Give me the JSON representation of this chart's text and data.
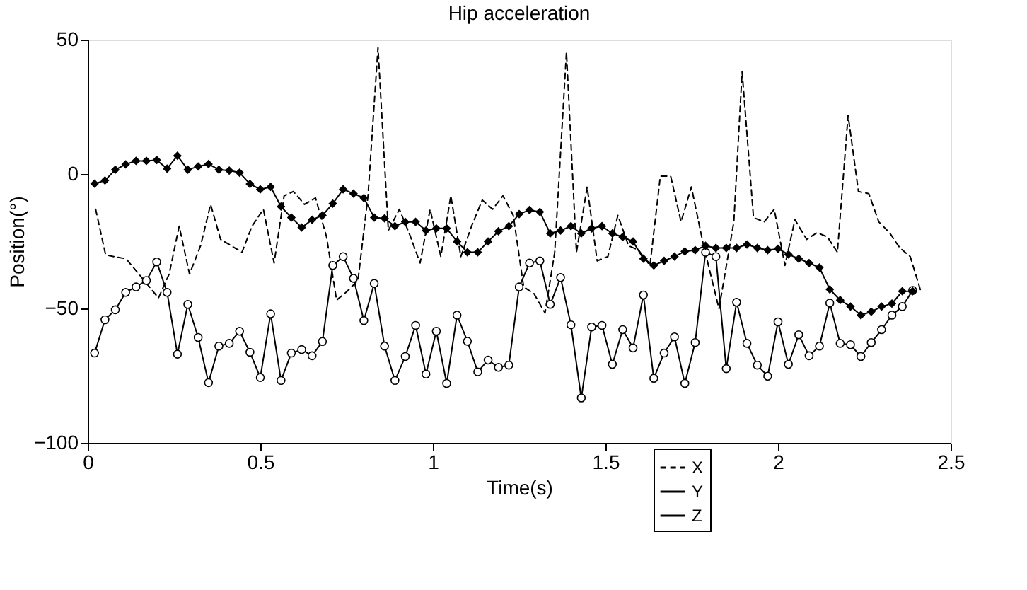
{
  "chart_data": {
    "type": "line",
    "title": "Hip acceleration",
    "xlabel": "Time(s)",
    "ylabel": "Position(°)",
    "xlim": [
      0,
      2.5
    ],
    "xticks": [
      0,
      0.5,
      1,
      1.5,
      2,
      2.5
    ],
    "ylim": [
      -100,
      50
    ],
    "yticks": [
      -100,
      -50,
      0,
      50
    ],
    "grid": false,
    "legend": "bottom",
    "series": [
      {
        "name": "X",
        "color": "#000000",
        "line_style": "dashed",
        "marker": "none",
        "x": [
          0.023,
          0.052,
          0.084,
          0.111,
          0.143,
          0.205,
          0.236,
          0.265,
          0.295,
          0.327,
          0.356,
          0.385,
          0.447,
          0.476,
          0.509,
          0.54,
          0.569,
          0.596,
          0.628,
          0.66,
          0.692,
          0.721,
          0.751,
          0.783,
          0.812,
          0.841,
          0.871,
          0.903,
          0.933,
          0.963,
          0.992,
          1.023,
          1.052,
          1.081,
          1.112,
          1.143,
          1.173,
          1.203,
          1.233,
          1.263,
          1.293,
          1.325,
          1.353,
          1.387,
          1.416,
          1.447,
          1.476,
          1.507,
          1.536,
          1.567,
          1.596,
          1.629,
          1.659,
          1.689,
          1.719,
          1.749,
          1.783,
          1.829,
          1.872,
          1.896,
          1.929,
          1.96,
          1.989,
          2.02,
          2.049,
          2.083,
          2.113,
          2.143,
          2.172,
          2.203,
          2.233,
          2.263,
          2.292,
          2.323,
          2.353,
          2.383,
          2.413
        ],
        "values": [
          -13.1,
          -30.1,
          -30.9,
          -31.5,
          -36.4,
          -46.1,
          -37.2,
          -19.4,
          -37.2,
          -26.7,
          -11.3,
          -24.3,
          -29.1,
          -19.4,
          -13.1,
          -33.1,
          -8.1,
          -6.5,
          -11.3,
          -8.9,
          -23.4,
          -46.9,
          -43.7,
          -39.6,
          -8.1,
          47,
          -21,
          -13.1,
          -22.6,
          -33.1,
          -13.1,
          -30.7,
          -8.1,
          -30.7,
          -19.4,
          -9.7,
          -13.1,
          -8.1,
          -15.4,
          -42,
          -44.5,
          -51.7,
          -29.1,
          45.3,
          -29.1,
          -4.8,
          -32.3,
          -30.7,
          -15.4,
          -26.7,
          -28.3,
          -34,
          -0.8,
          -0.8,
          -17.8,
          -4.8,
          -25.9,
          -50.1,
          -17.8,
          38,
          -16.2,
          -17.8,
          -13.1,
          -34,
          -17,
          -24.3,
          -21.8,
          -23.4,
          -29.1,
          21.8,
          -6.5,
          -7.3,
          -17.8,
          -21.8,
          -27.5,
          -30.7,
          -43.3
        ]
      },
      {
        "name": "Y",
        "color": "#000000",
        "line_style": "solid",
        "marker": "circle",
        "x": [
          0.02,
          0.05,
          0.08,
          0.11,
          0.14,
          0.17,
          0.2,
          0.23,
          0.26,
          0.29,
          0.32,
          0.35,
          0.38,
          0.41,
          0.44,
          0.47,
          0.5,
          0.53,
          0.56,
          0.59,
          0.62,
          0.65,
          0.68,
          0.71,
          0.74,
          0.77,
          0.8,
          0.83,
          0.86,
          0.89,
          0.92,
          0.95,
          0.98,
          1.01,
          1.04,
          1.07,
          1.1,
          1.13,
          1.16,
          1.19,
          1.22,
          1.25,
          1.28,
          1.31,
          1.34,
          1.37,
          1.4,
          1.43,
          1.46,
          1.49,
          1.52,
          1.55,
          1.58,
          1.61,
          1.64,
          1.67,
          1.7,
          1.73,
          1.76,
          1.79,
          1.82,
          1.85,
          1.88,
          1.91,
          1.94,
          1.97,
          2.0,
          2.03,
          2.06,
          2.09,
          2.12,
          2.15,
          2.18,
          2.21,
          2.24,
          2.27,
          2.3,
          2.33,
          2.36,
          2.39
        ],
        "values": [
          -66.6,
          -54.2,
          -50.5,
          -44,
          -42,
          -39.6,
          -32.7,
          -44,
          -67,
          -48.5,
          -60.8,
          -77.6,
          -64,
          -63,
          -58.5,
          -66.3,
          -75.7,
          -52,
          -76.8,
          -66.6,
          -65.3,
          -67.6,
          -62.3,
          -34,
          -30.7,
          -38.8,
          -54.5,
          -40.7,
          -64,
          -76.8,
          -67.9,
          -56.3,
          -74.4,
          -58.5,
          -77.9,
          -52.5,
          -62.2,
          -73.6,
          -69.2,
          -71.9,
          -71.1,
          -42,
          -33.1,
          -32.3,
          -48.5,
          -38.5,
          -56.1,
          -83.3,
          -56.9,
          -56.3,
          -70.8,
          -57.9,
          -64.7,
          -45,
          -76,
          -66.6,
          -60.6,
          -77.9,
          -62.7,
          -29.1,
          -30.7,
          -72.4,
          -47.7,
          -63,
          -71.1,
          -75.2,
          -55,
          -70.8,
          -59.8,
          -67.6,
          -64,
          -48,
          -63,
          -63.5,
          -67.9,
          -62.7,
          -57.9,
          -52.5,
          -49.3,
          -43.3
        ]
      },
      {
        "name": "Z",
        "color": "#000000",
        "line_style": "solid",
        "marker": "diamond",
        "x": [
          0.02,
          0.05,
          0.08,
          0.11,
          0.14,
          0.17,
          0.2,
          0.23,
          0.26,
          0.29,
          0.32,
          0.35,
          0.38,
          0.41,
          0.44,
          0.47,
          0.5,
          0.53,
          0.56,
          0.59,
          0.62,
          0.65,
          0.68,
          0.71,
          0.74,
          0.77,
          0.8,
          0.83,
          0.86,
          0.89,
          0.92,
          0.95,
          0.98,
          1.01,
          1.04,
          1.07,
          1.1,
          1.13,
          1.16,
          1.19,
          1.22,
          1.25,
          1.28,
          1.31,
          1.34,
          1.37,
          1.4,
          1.43,
          1.46,
          1.49,
          1.52,
          1.55,
          1.58,
          1.61,
          1.64,
          1.67,
          1.7,
          1.73,
          1.76,
          1.79,
          1.82,
          1.85,
          1.88,
          1.91,
          1.94,
          1.97,
          2.0,
          2.03,
          2.06,
          2.09,
          2.12,
          2.15,
          2.18,
          2.21,
          2.24,
          2.27,
          2.3,
          2.33,
          2.36,
          2.39
        ],
        "values": [
          -3.6,
          -2.4,
          1.6,
          3.6,
          4.9,
          4.9,
          5.2,
          2,
          6.8,
          1.6,
          2.8,
          3.7,
          1.6,
          1.3,
          0.5,
          -3.7,
          -5.7,
          -4.8,
          -12.1,
          -16.2,
          -19.9,
          -17,
          -15.4,
          -11,
          -5.7,
          -7.3,
          -8.9,
          -16.2,
          -16.5,
          -19.4,
          -17.8,
          -17.8,
          -21,
          -20.2,
          -20.2,
          -25.1,
          -29.1,
          -29.1,
          -25.1,
          -21.3,
          -19.4,
          -14.9,
          -13.4,
          -14.1,
          -22.1,
          -21,
          -19.4,
          -22.1,
          -20.2,
          -19.4,
          -22.1,
          -23.4,
          -25.1,
          -31.5,
          -34,
          -32.3,
          -30.7,
          -28.8,
          -28.3,
          -26.7,
          -27.5,
          -27.5,
          -27.5,
          -26.2,
          -27.5,
          -28.3,
          -27.8,
          -29.9,
          -31.5,
          -33.1,
          -34.8,
          -42.9,
          -46.9,
          -49.3,
          -52.5,
          -51.2,
          -49.3,
          -48.2,
          -43.6,
          -43.6
        ]
      }
    ]
  }
}
